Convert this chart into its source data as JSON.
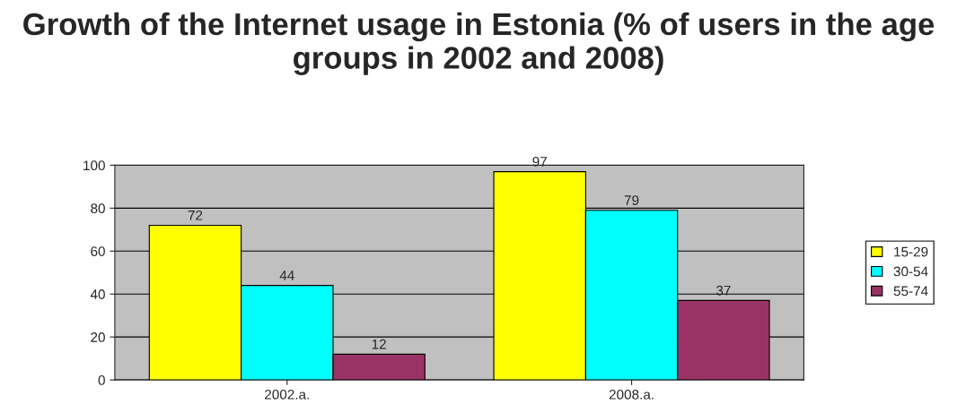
{
  "chart_data": {
    "type": "bar",
    "title": "Growth of the Internet usage in Estonia (% of users in the age groups in 2002 and 2008)",
    "categories": [
      "2002.a.",
      "2008.a."
    ],
    "series": [
      {
        "name": "15-29",
        "color": "#ffff00",
        "values": [
          72,
          97
        ]
      },
      {
        "name": "30-54",
        "color": "#00ffff",
        "values": [
          44,
          79
        ]
      },
      {
        "name": "55-74",
        "color": "#993366",
        "values": [
          12,
          37
        ]
      }
    ],
    "ylim": [
      0,
      100
    ],
    "yticks": [
      0,
      20,
      40,
      60,
      80,
      100
    ],
    "grid": "y",
    "legend": "right",
    "data_labels": true
  }
}
